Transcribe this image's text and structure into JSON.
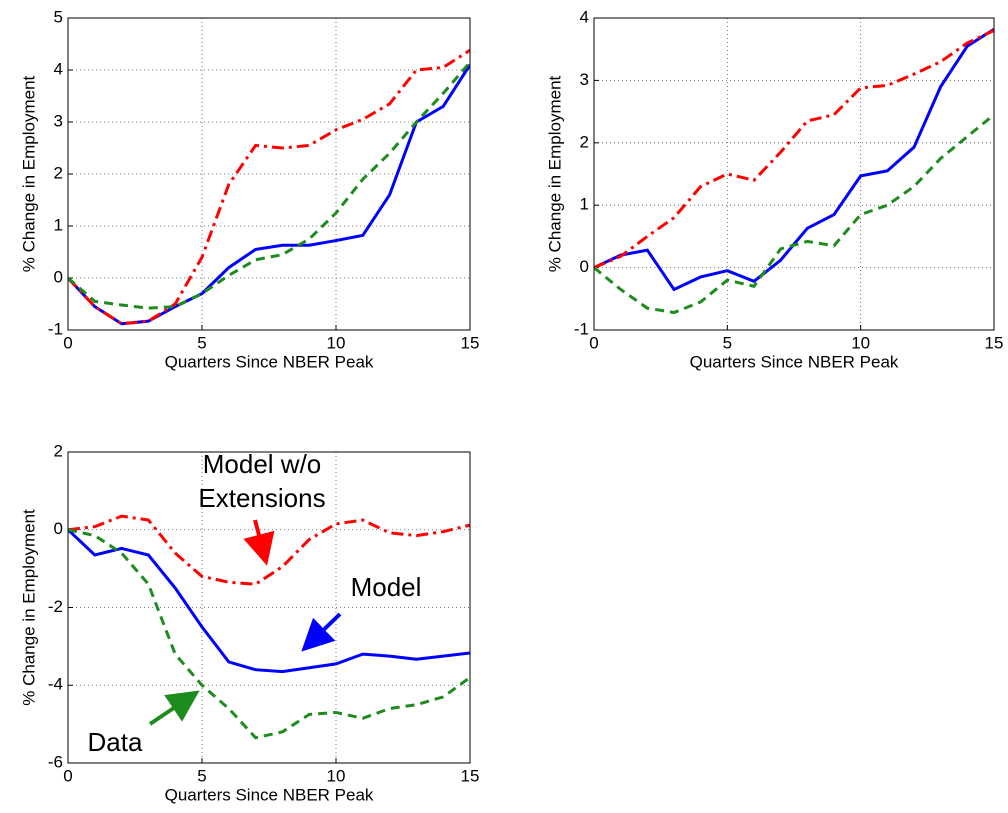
{
  "chart_data": [
    {
      "type": "line",
      "xlabel": "Quarters Since NBER Peak",
      "ylabel": "% Change in Employment",
      "x": [
        0,
        1,
        2,
        3,
        4,
        5,
        6,
        7,
        8,
        9,
        10,
        11,
        12,
        13,
        14,
        15
      ],
      "xlim": [
        0,
        15
      ],
      "xticks": [
        0,
        5,
        10,
        15
      ],
      "ylim": [
        -1,
        5
      ],
      "yticks": [
        -1,
        0,
        1,
        2,
        3,
        4,
        5
      ],
      "grid": true,
      "series": [
        {
          "color": "#0000ff",
          "style": "solid",
          "values": [
            0,
            -0.55,
            -0.88,
            -0.83,
            -0.55,
            -0.3,
            0.2,
            0.55,
            0.63,
            0.63,
            0.72,
            0.82,
            1.6,
            3.0,
            3.3,
            4.1
          ]
        },
        {
          "color": "#ff0000",
          "style": "dashdot",
          "values": [
            0,
            -0.55,
            -0.88,
            -0.83,
            -0.5,
            0.4,
            1.8,
            2.55,
            2.5,
            2.55,
            2.85,
            3.05,
            3.35,
            4.0,
            4.05,
            4.38
          ]
        },
        {
          "color": "#1e8b1e",
          "style": "dashed",
          "values": [
            0,
            -0.45,
            -0.52,
            -0.58,
            -0.55,
            -0.3,
            0.05,
            0.35,
            0.45,
            0.75,
            1.25,
            1.9,
            2.4,
            3.0,
            3.55,
            4.15
          ]
        }
      ]
    },
    {
      "type": "line",
      "xlabel": "Quarters Since NBER Peak",
      "ylabel": "% Change in Employment",
      "x": [
        0,
        1,
        2,
        3,
        4,
        5,
        6,
        7,
        8,
        9,
        10,
        11,
        12,
        13,
        14,
        15
      ],
      "xlim": [
        0,
        15
      ],
      "xticks": [
        0,
        5,
        10,
        15
      ],
      "ylim": [
        -1,
        4
      ],
      "yticks": [
        -1,
        0,
        1,
        2,
        3,
        4
      ],
      "grid": true,
      "series": [
        {
          "color": "#0000ff",
          "style": "solid",
          "values": [
            0,
            0.2,
            0.28,
            -0.35,
            -0.15,
            -0.05,
            -0.22,
            0.12,
            0.63,
            0.85,
            1.47,
            1.55,
            1.93,
            2.9,
            3.55,
            3.82
          ]
        },
        {
          "color": "#ff0000",
          "style": "dashdot",
          "values": [
            0,
            0.18,
            0.5,
            0.8,
            1.3,
            1.5,
            1.4,
            1.85,
            2.35,
            2.45,
            2.88,
            2.92,
            3.1,
            3.3,
            3.6,
            3.8
          ]
        },
        {
          "color": "#1e8b1e",
          "style": "dashed",
          "values": [
            0,
            -0.35,
            -0.65,
            -0.72,
            -0.55,
            -0.2,
            -0.3,
            0.3,
            0.42,
            0.35,
            0.85,
            1.0,
            1.3,
            1.75,
            2.1,
            2.45
          ]
        }
      ]
    },
    {
      "type": "line",
      "xlabel": "Quarters Since NBER Peak",
      "ylabel": "% Change in Employment",
      "x": [
        0,
        1,
        2,
        3,
        4,
        5,
        6,
        7,
        8,
        9,
        10,
        11,
        12,
        13,
        14,
        15
      ],
      "xlim": [
        0,
        15
      ],
      "xticks": [
        0,
        5,
        10,
        15
      ],
      "ylim": [
        -6,
        2
      ],
      "yticks": [
        -6,
        -4,
        -2,
        0,
        2
      ],
      "grid": true,
      "series": [
        {
          "color": "#0000ff",
          "style": "solid",
          "values": [
            0,
            -0.65,
            -0.48,
            -0.65,
            -1.5,
            -2.5,
            -3.4,
            -3.6,
            -3.65,
            -3.55,
            -3.45,
            -3.2,
            -3.25,
            -3.33,
            -3.25,
            -3.17
          ]
        },
        {
          "color": "#ff0000",
          "style": "dashdot",
          "values": [
            0,
            0.08,
            0.35,
            0.25,
            -0.6,
            -1.2,
            -1.35,
            -1.4,
            -0.95,
            -0.25,
            0.15,
            0.25,
            -0.08,
            -0.15,
            -0.05,
            0.12
          ]
        },
        {
          "color": "#1e8b1e",
          "style": "dashed",
          "values": [
            0,
            -0.15,
            -0.6,
            -1.4,
            -3.2,
            -4.0,
            -4.6,
            -5.35,
            -5.2,
            -4.75,
            -4.7,
            -4.85,
            -4.6,
            -4.5,
            -4.3,
            -3.8
          ]
        }
      ],
      "annotations": [
        {
          "text": "Model w/o",
          "color": "#ff0000"
        },
        {
          "text": "Extensions",
          "color": "#ff0000"
        },
        {
          "text": "Model",
          "color": "#0000ff"
        },
        {
          "text": "Data",
          "color": "#1e8b1e"
        }
      ]
    }
  ]
}
